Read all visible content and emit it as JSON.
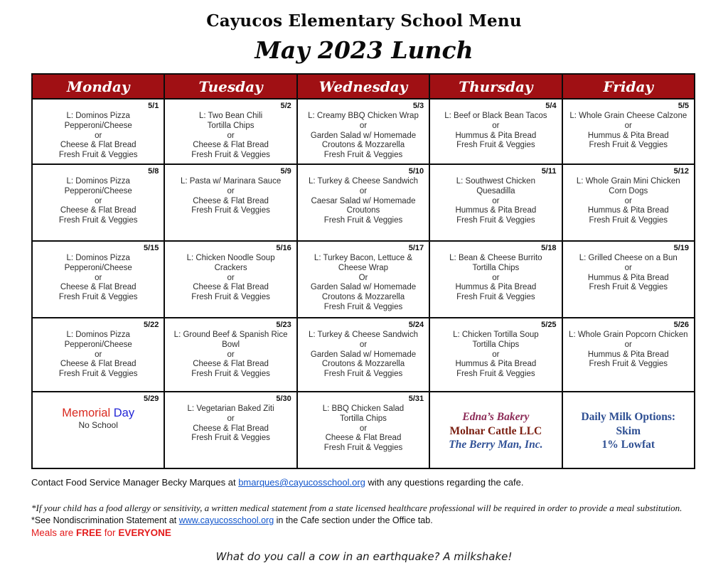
{
  "page": {
    "title": "Cayucos Elementary School Menu",
    "subtitle": "May 2023 Lunch",
    "stray_mark": "'"
  },
  "colors": {
    "header_bg": "#a01014",
    "memorial_red": "#d9291f",
    "memorial_blue": "#2326d6",
    "vendor_purple": "#8c2a56",
    "vendor_maroon": "#7a1e10",
    "vendor_blue": "#2f5096",
    "milk_blue": "#2d4e92",
    "link_blue": "#1155cc",
    "meals_red": "#e31b1c"
  },
  "calendar": {
    "day_headers": [
      "Monday",
      "Tuesday",
      "Wednesday",
      "Thursday",
      "Friday"
    ],
    "weeks": [
      {
        "cells": [
          {
            "date": "5/1",
            "lines": [
              "L: Dominos Pizza",
              "Pepperoni/Cheese",
              "or",
              "Cheese & Flat Bread",
              "Fresh Fruit & Veggies"
            ]
          },
          {
            "date": "5/2",
            "lines": [
              "L: Two Bean Chili",
              "Tortilla Chips",
              "or",
              "Cheese & Flat Bread",
              "Fresh Fruit & Veggies"
            ]
          },
          {
            "date": "5/3",
            "lines": [
              "L: Creamy BBQ Chicken Wrap",
              "or",
              "Garden Salad w/ Homemade",
              "Croutons & Mozzarella",
              "Fresh Fruit & Veggies"
            ]
          },
          {
            "date": "5/4",
            "lines": [
              "L:  Beef or Black Bean Tacos",
              "or",
              "Hummus & Pita Bread",
              "Fresh Fruit & Veggies"
            ]
          },
          {
            "date": "5/5",
            "lines": [
              "L:  Whole Grain Cheese Calzone",
              "or",
              "Hummus & Pita Bread",
              "Fresh Fruit & Veggies"
            ]
          }
        ]
      },
      {
        "cells": [
          {
            "date": "5/8",
            "lines": [
              "L: Dominos Pizza",
              "Pepperoni/Cheese",
              "or",
              "Cheese & Flat Bread",
              "Fresh Fruit & Veggies"
            ]
          },
          {
            "date": "5/9",
            "lines": [
              "L: Pasta w/ Marinara Sauce",
              "or",
              "Cheese & Flat Bread",
              "Fresh Fruit & Veggies"
            ]
          },
          {
            "date": "5/10",
            "lines": [
              "L: Turkey & Cheese Sandwich",
              "or",
              "Caesar Salad w/ Homemade",
              "Croutons",
              "Fresh Fruit & Veggies"
            ]
          },
          {
            "date": "5/11",
            "lines": [
              "L:  Southwest Chicken",
              "Quesadilla",
              "or",
              "Hummus & Pita Bread",
              "Fresh Fruit & Veggies"
            ]
          },
          {
            "date": "5/12",
            "lines": [
              "L: Whole Grain Mini Chicken",
              "Corn Dogs",
              "or",
              "Hummus & Pita Bread",
              "Fresh Fruit & Veggies"
            ]
          }
        ]
      },
      {
        "cells": [
          {
            "date": "5/15",
            "lines": [
              "L: Dominos Pizza",
              "Pepperoni/Cheese",
              "or",
              "Cheese & Flat Bread",
              "Fresh Fruit & Veggies"
            ]
          },
          {
            "date": "5/16",
            "lines": [
              "L: Chicken Noodle Soup",
              "Crackers",
              "or",
              "Cheese & Flat Bread",
              "Fresh Fruit & Veggies"
            ]
          },
          {
            "date": "5/17",
            "lines": [
              "L: Turkey Bacon, Lettuce &",
              "Cheese Wrap",
              "Or",
              "Garden Salad w/ Homemade",
              "Croutons & Mozzarella",
              "Fresh Fruit & Veggies"
            ]
          },
          {
            "date": "5/18",
            "lines": [
              "L: Bean & Cheese Burrito",
              "Tortilla Chips",
              "or",
              "Hummus & Pita Bread",
              "Fresh Fruit & Veggies"
            ]
          },
          {
            "date": "5/19",
            "lines": [
              "L: Grilled Cheese on a Bun",
              "or",
              "Hummus & Pita Bread",
              "Fresh Fruit & Veggies"
            ]
          }
        ]
      },
      {
        "cells": [
          {
            "date": "5/22",
            "lines": [
              "L: Dominos Pizza",
              "Pepperoni/Cheese",
              "or",
              "Cheese & Flat Bread",
              "Fresh Fruit & Veggies"
            ]
          },
          {
            "date": "5/23",
            "lines": [
              "L: Ground Beef & Spanish Rice",
              "Bowl",
              "or",
              "Cheese & Flat Bread",
              "Fresh Fruit & Veggies"
            ]
          },
          {
            "date": "5/24",
            "lines": [
              "L: Turkey & Cheese Sandwich",
              "or",
              "Garden Salad w/ Homemade",
              "Croutons & Mozzarella",
              "Fresh Fruit & Veggies"
            ]
          },
          {
            "date": "5/25",
            "lines": [
              "L: Chicken Tortilla Soup",
              "Tortilla Chips",
              "or",
              "Hummus & Pita Bread",
              "Fresh Fruit & Veggies"
            ]
          },
          {
            "date": "5/26",
            "lines": [
              "L: Whole Grain Popcorn Chicken",
              "or",
              "Hummus & Pita Bread",
              "Fresh Fruit & Veggies"
            ]
          }
        ]
      },
      {
        "cells": [
          {
            "date": "5/29",
            "special": "memorial",
            "title_parts": [
              {
                "text": "Memorial",
                "color": "#d9291f"
              },
              {
                "text": " Day",
                "color": "#2326d6"
              }
            ],
            "lines": [
              "No School"
            ]
          },
          {
            "date": "5/30",
            "lines": [
              "L: Vegetarian Baked Ziti",
              "or",
              "Cheese & Flat Bread",
              "Fresh Fruit & Veggies"
            ]
          },
          {
            "date": "5/31",
            "lines": [
              "L: BBQ Chicken Salad",
              "Tortilla Chips",
              "or",
              "Cheese & Flat Bread",
              "Fresh Fruit & Veggies"
            ]
          },
          {
            "date": "",
            "special": "vendors",
            "vendor_lines": [
              {
                "text": "Edna’s Bakery",
                "color": "#8c2a56",
                "italic": true
              },
              {
                "text": "Molnar Cattle LLC",
                "color": "#7a1e10",
                "italic": false
              },
              {
                "text": "The Berry Man, Inc.",
                "color": "#2f5096",
                "italic": true
              }
            ]
          },
          {
            "date": "",
            "special": "milk",
            "milk_color": "#2d4e92",
            "milk_lines": [
              "Daily Milk Options:",
              "Skim",
              "1% Lowfat"
            ]
          }
        ]
      }
    ]
  },
  "footer": {
    "contact_prefix": "Contact Food Service Manager Becky Marques at ",
    "contact_link": "bmarques@cayucosschool.org",
    "contact_suffix": " with any questions regarding the cafe.",
    "allergy_note": "*If your child has a food allergy or sensitivity, a written medical statement from a state licensed healthcare professional will be required in order to provide a meal substitution.",
    "nondiscrim_prefix": "*See Nondiscrimination Statement at ",
    "nondiscrim_link": "www.cayucosschool.org",
    "nondiscrim_suffix": " in the Cafe section under the Office tab.",
    "meals_prefix": "Meals are ",
    "meals_free": "FREE",
    "meals_mid": " for ",
    "meals_everyone": "EVERYONE",
    "joke": "What do you call a cow in an earthquake? A milkshake!"
  }
}
